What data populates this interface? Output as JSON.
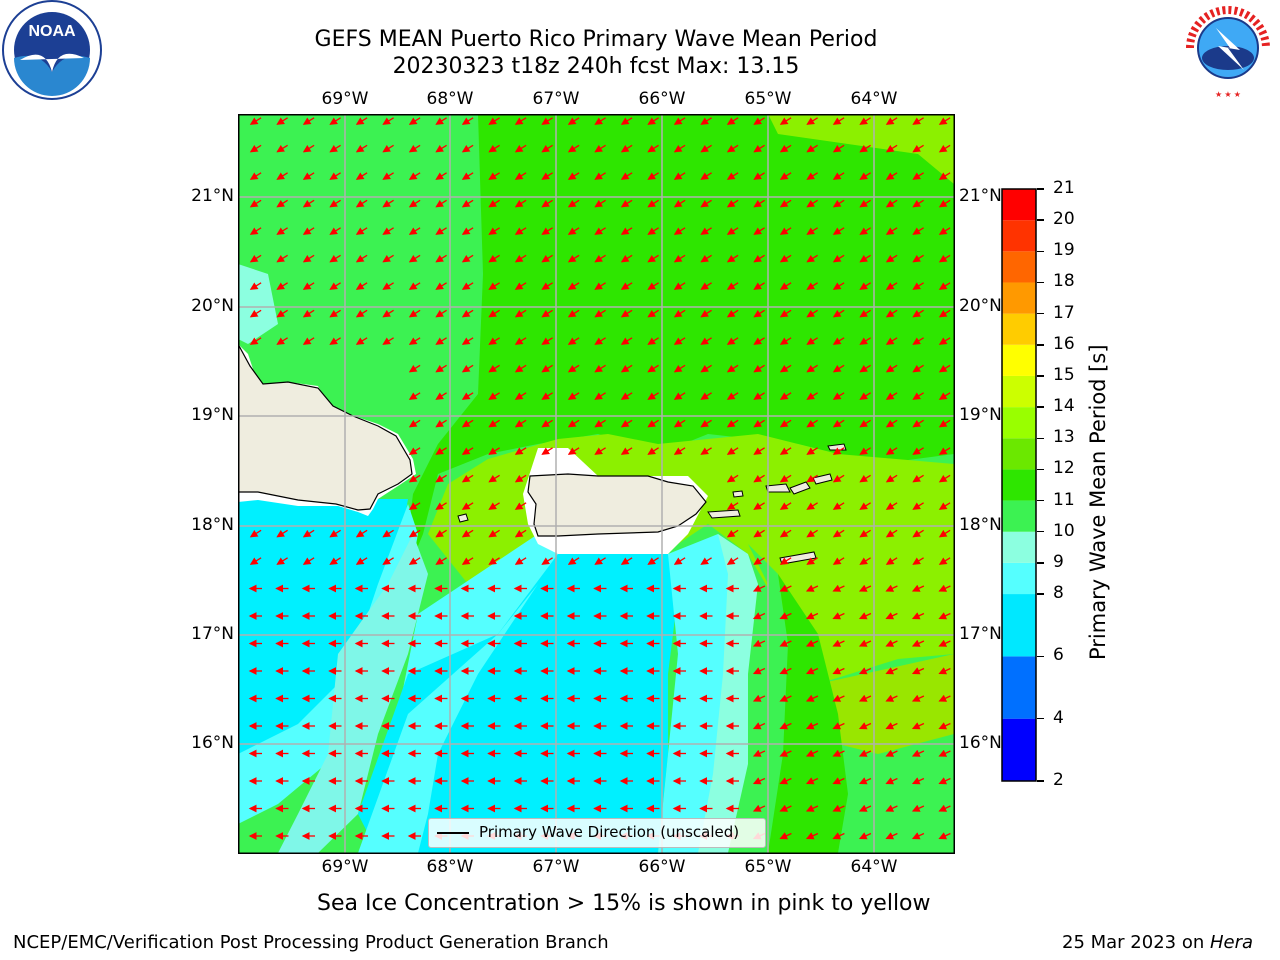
{
  "title_line1": "GEFS MEAN Puerto Rico Primary Wave Mean Period",
  "title_line2": "20230323 t18z 240h fcst   Max: 13.15",
  "lon_labels": [
    "69°W",
    "68°W",
    "67°W",
    "66°W",
    "65°W",
    "64°W"
  ],
  "lat_labels": [
    "21°N",
    "20°N",
    "19°N",
    "18°N",
    "17°N",
    "16°N"
  ],
  "legend_label": "Primary Wave Direction (unscaled)",
  "colorbar": {
    "label": "Primary Wave Mean Period [s]",
    "ticks": [
      "2",
      "4",
      "6",
      "8",
      "9",
      "10",
      "11",
      "12",
      "13",
      "14",
      "15",
      "16",
      "17",
      "18",
      "19",
      "20",
      "21"
    ],
    "colors": [
      "#0000ff",
      "#0070ff",
      "#00e8ff",
      "#55ffff",
      "#8cffe0",
      "#3cf252",
      "#2ee600",
      "#6be800",
      "#99ff00",
      "#ccff00",
      "#ffff00",
      "#ffcc00",
      "#ff9900",
      "#ff6600",
      "#ff3300",
      "#ff0000"
    ]
  },
  "colors": {
    "arrow": "#ff0000",
    "land": "#efeddf",
    "gridline": "#b0b0b0"
  },
  "sea_ice_note": "Sea Ice Concentration > 15% is shown in pink to yellow",
  "footer_left": "NCEP/EMC/Verification Post Processing Product Generation Branch",
  "footer_right_prefix": "25 Mar 2023 on ",
  "footer_right_host": "Hera",
  "logo_noaa": "NOAA",
  "logo_nws_text": "NATIONAL WEATHER SERVICE"
}
